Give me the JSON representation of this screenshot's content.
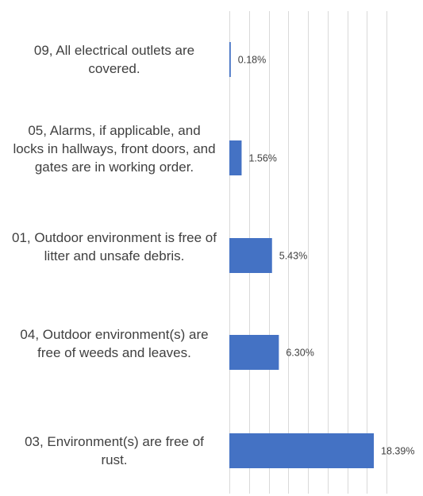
{
  "chart_data": {
    "type": "bar",
    "orientation": "horizontal",
    "categories": [
      "09, All electrical outlets are covered.",
      "05, Alarms, if applicable, and locks in hallways, front doors, and gates are in working order.",
      "01, Outdoor environment is free of litter and unsafe debris.",
      "04, Outdoor environment(s) are free of weeds and leaves.",
      "03, Environment(s) are free of rust."
    ],
    "values": [
      0.18,
      1.56,
      5.43,
      6.3,
      18.39
    ],
    "data_labels": [
      "0.18%",
      "1.56%",
      "5.43%",
      "6.30%",
      "18.39%"
    ],
    "xlim": [
      0,
      20
    ],
    "grid": true,
    "bar_color": "#4472C4",
    "grid_color": "#D9D9D9",
    "label_color": "#404040",
    "data_label_color": "#404040",
    "title": "",
    "xlabel": "",
    "ylabel": ""
  }
}
